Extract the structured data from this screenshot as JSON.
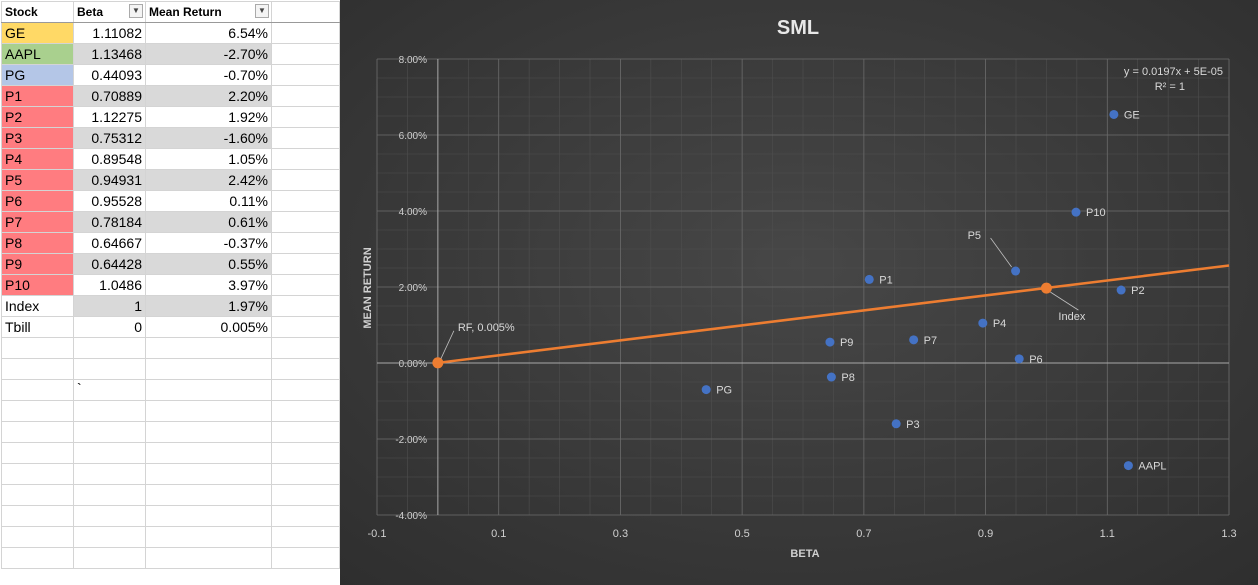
{
  "sheet": {
    "headers": [
      "Stock",
      "Beta",
      "Mean Return"
    ],
    "rows": [
      {
        "stock": "GE",
        "beta": "1.11082",
        "ret": "6.54%",
        "color": "#ffd966"
      },
      {
        "stock": "AAPL",
        "beta": "1.13468",
        "ret": "-2.70%",
        "color": "#a9d08e"
      },
      {
        "stock": "PG",
        "beta": "0.44093",
        "ret": "-0.70%",
        "color": "#b4c6e7"
      },
      {
        "stock": "P1",
        "beta": "0.70889",
        "ret": "2.20%",
        "color": "#ff7c80"
      },
      {
        "stock": "P2",
        "beta": "1.12275",
        "ret": "1.92%",
        "color": "#ff7c80"
      },
      {
        "stock": "P3",
        "beta": "0.75312",
        "ret": "-1.60%",
        "color": "#ff7c80"
      },
      {
        "stock": "P4",
        "beta": "0.89548",
        "ret": "1.05%",
        "color": "#ff7c80"
      },
      {
        "stock": "P5",
        "beta": "0.94931",
        "ret": "2.42%",
        "color": "#ff7c80"
      },
      {
        "stock": "P6",
        "beta": "0.95528",
        "ret": "0.11%",
        "color": "#ff7c80"
      },
      {
        "stock": "P7",
        "beta": "0.78184",
        "ret": "0.61%",
        "color": "#ff7c80"
      },
      {
        "stock": "P8",
        "beta": "0.64667",
        "ret": "-0.37%",
        "color": "#ff7c80"
      },
      {
        "stock": "P9",
        "beta": "0.64428",
        "ret": "0.55%",
        "color": "#ff7c80"
      },
      {
        "stock": "P10",
        "beta": "1.0486",
        "ret": "3.97%",
        "color": "#ff7c80"
      },
      {
        "stock": "Index",
        "beta": "1",
        "ret": "1.97%",
        "color": "#ffffff"
      },
      {
        "stock": "Tbill",
        "beta": "0",
        "ret": "0.005%",
        "color": "#ffffff"
      }
    ],
    "stray_mark": "`"
  },
  "chart_data": {
    "type": "scatter",
    "title": "SML",
    "xlabel": "BETA",
    "ylabel": "MEAN RETURN",
    "xlim": [
      -0.1,
      1.3
    ],
    "ylim": [
      -0.04,
      0.08
    ],
    "x_ticks": [
      "-0.1",
      "0.1",
      "0.3",
      "0.5",
      "0.7",
      "0.9",
      "1.1",
      "1.3"
    ],
    "y_ticks": [
      "-4.00%",
      "-2.00%",
      "0.00%",
      "2.00%",
      "4.00%",
      "6.00%",
      "8.00%"
    ],
    "grid": true,
    "trendline_equation": "y = 0.0197x + 5E-05",
    "r_squared": "R² = 1",
    "points": [
      {
        "label": "GE",
        "x": 1.11082,
        "y": 0.0654
      },
      {
        "label": "AAPL",
        "x": 1.13468,
        "y": -0.027
      },
      {
        "label": "PG",
        "x": 0.44093,
        "y": -0.007
      },
      {
        "label": "P1",
        "x": 0.70889,
        "y": 0.022
      },
      {
        "label": "P2",
        "x": 1.12275,
        "y": 0.0192
      },
      {
        "label": "P3",
        "x": 0.75312,
        "y": -0.016
      },
      {
        "label": "P4",
        "x": 0.89548,
        "y": 0.0105
      },
      {
        "label": "P5",
        "x": 0.94931,
        "y": 0.0242
      },
      {
        "label": "P6",
        "x": 0.95528,
        "y": 0.0011
      },
      {
        "label": "P7",
        "x": 0.78184,
        "y": 0.0061
      },
      {
        "label": "P8",
        "x": 0.64667,
        "y": -0.0037
      },
      {
        "label": "P9",
        "x": 0.64428,
        "y": 0.0055
      },
      {
        "label": "P10",
        "x": 1.0486,
        "y": 0.0397
      }
    ],
    "sml_points": [
      {
        "label": "RF, 0.005%",
        "x": 0,
        "y": 5e-05
      },
      {
        "label": "Index",
        "x": 1,
        "y": 0.0197
      }
    ],
    "sml_line": {
      "x": [
        0,
        1.3
      ],
      "y": [
        5e-05,
        0.02566
      ]
    },
    "colors": {
      "points": "#4472c4",
      "sml": "#ed7d31",
      "background": "#3c3c3c",
      "text": "#d9d9d9"
    }
  }
}
